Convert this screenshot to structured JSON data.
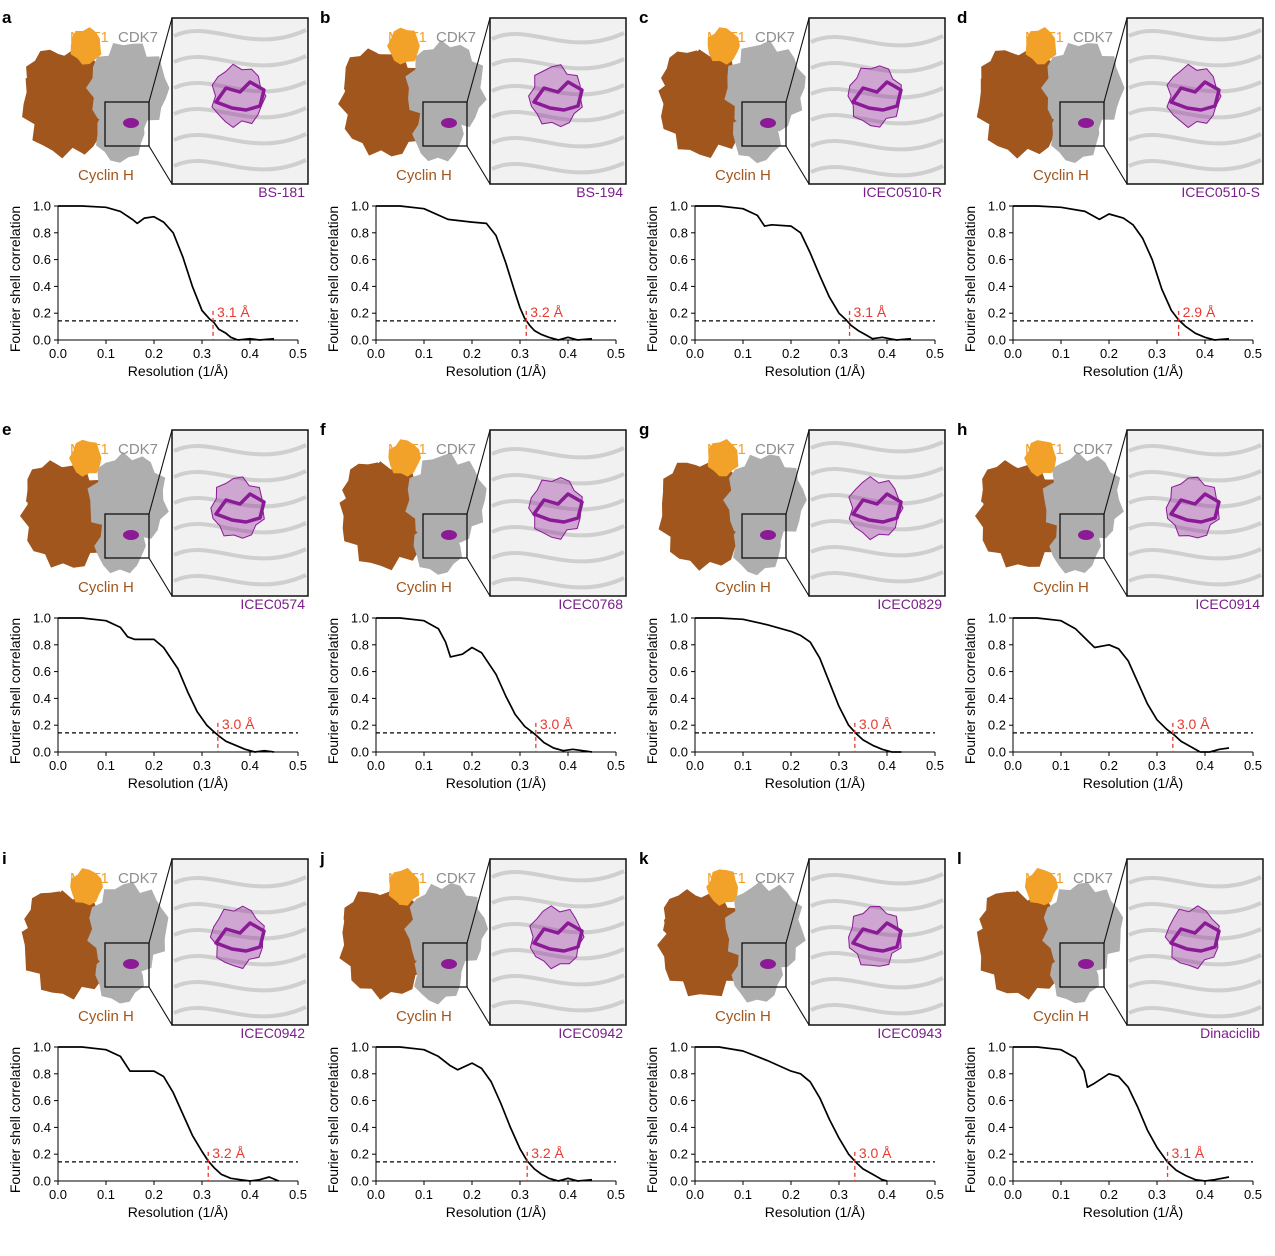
{
  "colors": {
    "mat1": "#f2a129",
    "cdk7": "#aeaeae",
    "cyclin_h": "#a0561d",
    "ligand": "#8b1a96",
    "threshold": "#000000",
    "resolution_marker": "#e8392f"
  },
  "common": {
    "mat1_label": "MAT1",
    "cdk7_label": "CDK7",
    "cyclin_label": "Cyclin H"
  },
  "panels": [
    {
      "id": "a",
      "ligand": "BS-181",
      "resolution_label": "3.1 Å"
    },
    {
      "id": "b",
      "ligand": "BS-194",
      "resolution_label": "3.2 Å"
    },
    {
      "id": "c",
      "ligand": "ICEC0510-R",
      "resolution_label": "3.1 Å"
    },
    {
      "id": "d",
      "ligand": "ICEC0510-S",
      "resolution_label": "2.9 Å"
    },
    {
      "id": "e",
      "ligand": "ICEC0574",
      "resolution_label": "3.0 Å"
    },
    {
      "id": "f",
      "ligand": "ICEC0768",
      "resolution_label": "3.0 Å"
    },
    {
      "id": "g",
      "ligand": "ICEC0829",
      "resolution_label": "3.0 Å"
    },
    {
      "id": "h",
      "ligand": "ICEC0914",
      "resolution_label": "3.0 Å"
    },
    {
      "id": "i",
      "ligand": "ICEC0942",
      "resolution_label": "3.2 Å"
    },
    {
      "id": "j",
      "ligand": "ICEC0942",
      "resolution_label": "3.2 Å"
    },
    {
      "id": "k",
      "ligand": "ICEC0943",
      "resolution_label": "3.0 Å"
    },
    {
      "id": "l",
      "ligand": "Dinaciclib",
      "resolution_label": "3.1 Å"
    }
  ],
  "chart_data": [
    {
      "panel": "a",
      "type": "line",
      "xlabel": "Resolution (1/Å)",
      "ylabel": "Fourier shell correlation",
      "xlim": [
        0,
        0.5
      ],
      "ylim": [
        0,
        1.0
      ],
      "xticks": [
        "0.0",
        "0.1",
        "0.2",
        "0.3",
        "0.4",
        "0.5"
      ],
      "yticks": [
        "0.0",
        "0.2",
        "0.4",
        "0.6",
        "0.8",
        "1.0"
      ],
      "threshold": 0.143,
      "resolution_x": 0.323,
      "resolution_label": "3.1 Å",
      "series": [
        {
          "x": [
            0,
            0.05,
            0.1,
            0.13,
            0.155,
            0.165,
            0.18,
            0.2,
            0.22,
            0.24,
            0.26,
            0.28,
            0.3,
            0.315,
            0.325,
            0.335,
            0.35,
            0.36,
            0.375,
            0.4,
            0.42,
            0.45
          ],
          "y": [
            1.0,
            1.0,
            0.99,
            0.96,
            0.9,
            0.87,
            0.91,
            0.92,
            0.88,
            0.8,
            0.62,
            0.4,
            0.22,
            0.16,
            0.13,
            0.08,
            0.05,
            0.02,
            0.0,
            0.01,
            0.0,
            0.01
          ]
        }
      ]
    },
    {
      "panel": "b",
      "type": "line",
      "xlabel": "Resolution (1/Å)",
      "ylabel": "Fourier shell correlation",
      "xlim": [
        0,
        0.5
      ],
      "ylim": [
        0,
        1.0
      ],
      "xticks": [
        "0.0",
        "0.1",
        "0.2",
        "0.3",
        "0.4",
        "0.5"
      ],
      "yticks": [
        "0.0",
        "0.2",
        "0.4",
        "0.6",
        "0.8",
        "1.0"
      ],
      "threshold": 0.143,
      "resolution_x": 0.313,
      "resolution_label": "3.2 Å",
      "series": [
        {
          "x": [
            0,
            0.05,
            0.1,
            0.15,
            0.2,
            0.23,
            0.25,
            0.27,
            0.29,
            0.3,
            0.31,
            0.32,
            0.33,
            0.345,
            0.36,
            0.38,
            0.4,
            0.42,
            0.45
          ],
          "y": [
            1.0,
            1.0,
            0.98,
            0.9,
            0.88,
            0.87,
            0.78,
            0.58,
            0.35,
            0.24,
            0.16,
            0.11,
            0.07,
            0.04,
            0.02,
            0.0,
            0.02,
            0.0,
            0.01
          ]
        }
      ]
    },
    {
      "panel": "c",
      "type": "line",
      "xlabel": "Resolution (1/Å)",
      "ylabel": "Fourier shell correlation",
      "xlim": [
        0,
        0.5
      ],
      "ylim": [
        0,
        1.0
      ],
      "xticks": [
        "0.0",
        "0.1",
        "0.2",
        "0.3",
        "0.4",
        "0.5"
      ],
      "yticks": [
        "0.0",
        "0.2",
        "0.4",
        "0.6",
        "0.8",
        "1.0"
      ],
      "threshold": 0.143,
      "resolution_x": 0.322,
      "resolution_label": "3.1 Å",
      "series": [
        {
          "x": [
            0,
            0.05,
            0.1,
            0.13,
            0.145,
            0.16,
            0.2,
            0.22,
            0.24,
            0.26,
            0.28,
            0.3,
            0.315,
            0.325,
            0.34,
            0.355,
            0.37,
            0.39,
            0.42,
            0.45
          ],
          "y": [
            1.0,
            1.0,
            0.98,
            0.93,
            0.85,
            0.86,
            0.85,
            0.8,
            0.65,
            0.48,
            0.32,
            0.2,
            0.15,
            0.11,
            0.07,
            0.04,
            0.01,
            0.02,
            0.0,
            0.01
          ]
        }
      ]
    },
    {
      "panel": "d",
      "type": "line",
      "xlabel": "Resolution (1/Å)",
      "ylabel": "Fourier shell correlation",
      "xlim": [
        0,
        0.5
      ],
      "ylim": [
        0,
        1.0
      ],
      "xticks": [
        "0.0",
        "0.1",
        "0.2",
        "0.3",
        "0.4",
        "0.5"
      ],
      "yticks": [
        "0.0",
        "0.2",
        "0.4",
        "0.6",
        "0.8",
        "1.0"
      ],
      "threshold": 0.143,
      "resolution_x": 0.345,
      "resolution_label": "2.9 Å",
      "series": [
        {
          "x": [
            0,
            0.05,
            0.1,
            0.15,
            0.18,
            0.2,
            0.23,
            0.25,
            0.27,
            0.29,
            0.31,
            0.33,
            0.345,
            0.36,
            0.38,
            0.4,
            0.42,
            0.45
          ],
          "y": [
            1.0,
            1.0,
            0.99,
            0.96,
            0.9,
            0.94,
            0.91,
            0.86,
            0.76,
            0.6,
            0.38,
            0.22,
            0.15,
            0.1,
            0.05,
            0.02,
            0.0,
            0.01
          ]
        }
      ]
    },
    {
      "panel": "e",
      "type": "line",
      "xlabel": "Resolution (1/Å)",
      "ylabel": "Fourier shell correlation",
      "xlim": [
        0,
        0.5
      ],
      "ylim": [
        0,
        1.0
      ],
      "xticks": [
        "0.0",
        "0.1",
        "0.2",
        "0.3",
        "0.4",
        "0.5"
      ],
      "yticks": [
        "0.0",
        "0.2",
        "0.4",
        "0.6",
        "0.8",
        "1.0"
      ],
      "threshold": 0.143,
      "resolution_x": 0.333,
      "resolution_label": "3.0 Å",
      "series": [
        {
          "x": [
            0,
            0.05,
            0.1,
            0.13,
            0.145,
            0.16,
            0.2,
            0.22,
            0.25,
            0.27,
            0.29,
            0.31,
            0.325,
            0.335,
            0.35,
            0.37,
            0.39,
            0.41,
            0.43,
            0.45
          ],
          "y": [
            1.0,
            1.0,
            0.98,
            0.93,
            0.86,
            0.84,
            0.84,
            0.78,
            0.62,
            0.45,
            0.3,
            0.2,
            0.15,
            0.12,
            0.08,
            0.05,
            0.02,
            0.0,
            0.01,
            0.0
          ]
        }
      ]
    },
    {
      "panel": "f",
      "type": "line",
      "xlabel": "Resolution (1/Å)",
      "ylabel": "Fourier shell correlation",
      "xlim": [
        0,
        0.5
      ],
      "ylim": [
        0,
        1.0
      ],
      "xticks": [
        "0.0",
        "0.1",
        "0.2",
        "0.3",
        "0.4",
        "0.5"
      ],
      "yticks": [
        "0.0",
        "0.2",
        "0.4",
        "0.6",
        "0.8",
        "1.0"
      ],
      "threshold": 0.143,
      "resolution_x": 0.333,
      "resolution_label": "3.0 Å",
      "series": [
        {
          "x": [
            0,
            0.05,
            0.1,
            0.13,
            0.145,
            0.155,
            0.18,
            0.2,
            0.22,
            0.25,
            0.27,
            0.29,
            0.31,
            0.325,
            0.335,
            0.35,
            0.37,
            0.39,
            0.41,
            0.45
          ],
          "y": [
            1.0,
            1.0,
            0.98,
            0.92,
            0.82,
            0.71,
            0.73,
            0.78,
            0.74,
            0.58,
            0.42,
            0.28,
            0.19,
            0.15,
            0.12,
            0.07,
            0.03,
            0.01,
            0.02,
            0.0
          ]
        }
      ]
    },
    {
      "panel": "g",
      "type": "line",
      "xlabel": "Resolution (1/Å)",
      "ylabel": "Fourier shell correlation",
      "xlim": [
        0,
        0.5
      ],
      "ylim": [
        0,
        1.0
      ],
      "xticks": [
        "0.0",
        "0.1",
        "0.2",
        "0.3",
        "0.4",
        "0.5"
      ],
      "yticks": [
        "0.0",
        "0.2",
        "0.4",
        "0.6",
        "0.8",
        "1.0"
      ],
      "threshold": 0.143,
      "resolution_x": 0.333,
      "resolution_label": "3.0 Å",
      "series": [
        {
          "x": [
            0,
            0.05,
            0.1,
            0.15,
            0.2,
            0.22,
            0.24,
            0.26,
            0.28,
            0.3,
            0.32,
            0.335,
            0.35,
            0.37,
            0.39,
            0.41,
            0.43
          ],
          "y": [
            1.0,
            1.0,
            0.99,
            0.95,
            0.9,
            0.87,
            0.82,
            0.7,
            0.52,
            0.34,
            0.2,
            0.14,
            0.09,
            0.05,
            0.02,
            0.0,
            0.0
          ]
        }
      ]
    },
    {
      "panel": "h",
      "type": "line",
      "xlabel": "Resolution (1/Å)",
      "ylabel": "Fourier shell correlation",
      "xlim": [
        0,
        0.5
      ],
      "ylim": [
        0,
        1.0
      ],
      "xticks": [
        "0.0",
        "0.1",
        "0.2",
        "0.3",
        "0.4",
        "0.5"
      ],
      "yticks": [
        "0.0",
        "0.2",
        "0.4",
        "0.6",
        "0.8",
        "1.0"
      ],
      "threshold": 0.143,
      "resolution_x": 0.333,
      "resolution_label": "3.0 Å",
      "series": [
        {
          "x": [
            0,
            0.05,
            0.1,
            0.13,
            0.15,
            0.17,
            0.2,
            0.22,
            0.24,
            0.26,
            0.28,
            0.3,
            0.32,
            0.335,
            0.35,
            0.37,
            0.39,
            0.41,
            0.43,
            0.45
          ],
          "y": [
            1.0,
            1.0,
            0.98,
            0.92,
            0.85,
            0.78,
            0.8,
            0.77,
            0.68,
            0.52,
            0.36,
            0.24,
            0.17,
            0.13,
            0.08,
            0.04,
            0.0,
            0.0,
            0.02,
            0.03
          ]
        }
      ]
    },
    {
      "panel": "i",
      "type": "line",
      "xlabel": "Resolution (1/Å)",
      "ylabel": "Fourier shell correlation",
      "xlim": [
        0,
        0.5
      ],
      "ylim": [
        0,
        1.0
      ],
      "xticks": [
        "0.0",
        "0.1",
        "0.2",
        "0.3",
        "0.4",
        "0.5"
      ],
      "yticks": [
        "0.0",
        "0.2",
        "0.4",
        "0.6",
        "0.8",
        "1.0"
      ],
      "threshold": 0.143,
      "resolution_x": 0.313,
      "resolution_label": "3.2 Å",
      "series": [
        {
          "x": [
            0,
            0.05,
            0.1,
            0.13,
            0.15,
            0.2,
            0.22,
            0.24,
            0.26,
            0.28,
            0.3,
            0.313,
            0.325,
            0.34,
            0.36,
            0.38,
            0.4,
            0.42,
            0.44,
            0.46
          ],
          "y": [
            1.0,
            1.0,
            0.98,
            0.93,
            0.82,
            0.82,
            0.78,
            0.66,
            0.5,
            0.34,
            0.22,
            0.15,
            0.1,
            0.05,
            0.02,
            0.01,
            0.0,
            0.01,
            0.03,
            0.0
          ]
        }
      ]
    },
    {
      "panel": "j",
      "type": "line",
      "xlabel": "Resolution (1/Å)",
      "ylabel": "Fourier shell correlation",
      "xlim": [
        0,
        0.5
      ],
      "ylim": [
        0,
        1.0
      ],
      "xticks": [
        "0.0",
        "0.1",
        "0.2",
        "0.3",
        "0.4",
        "0.5"
      ],
      "yticks": [
        "0.0",
        "0.2",
        "0.4",
        "0.6",
        "0.8",
        "1.0"
      ],
      "threshold": 0.143,
      "resolution_x": 0.315,
      "resolution_label": "3.2 Å",
      "series": [
        {
          "x": [
            0,
            0.05,
            0.1,
            0.13,
            0.155,
            0.17,
            0.2,
            0.22,
            0.24,
            0.26,
            0.28,
            0.3,
            0.315,
            0.33,
            0.345,
            0.36,
            0.38,
            0.4,
            0.42,
            0.45
          ],
          "y": [
            1.0,
            1.0,
            0.98,
            0.93,
            0.86,
            0.83,
            0.88,
            0.84,
            0.74,
            0.58,
            0.4,
            0.24,
            0.15,
            0.09,
            0.05,
            0.02,
            0.0,
            0.02,
            0.0,
            0.01
          ]
        }
      ]
    },
    {
      "panel": "k",
      "type": "line",
      "xlabel": "Resolution (1/Å)",
      "ylabel": "Fourier shell correlation",
      "xlim": [
        0,
        0.5
      ],
      "ylim": [
        0,
        1.0
      ],
      "xticks": [
        "0.0",
        "0.1",
        "0.2",
        "0.3",
        "0.4",
        "0.5"
      ],
      "yticks": [
        "0.0",
        "0.2",
        "0.4",
        "0.6",
        "0.8",
        "1.0"
      ],
      "threshold": 0.143,
      "resolution_x": 0.333,
      "resolution_label": "3.0 Å",
      "series": [
        {
          "x": [
            0,
            0.05,
            0.1,
            0.15,
            0.2,
            0.22,
            0.24,
            0.26,
            0.28,
            0.3,
            0.32,
            0.335,
            0.35,
            0.37,
            0.39,
            0.4
          ],
          "y": [
            1.0,
            1.0,
            0.97,
            0.9,
            0.82,
            0.8,
            0.74,
            0.62,
            0.46,
            0.32,
            0.2,
            0.14,
            0.09,
            0.05,
            0.01,
            0.0
          ]
        }
      ]
    },
    {
      "panel": "l",
      "type": "line",
      "xlabel": "Resolution (1/Å)",
      "ylabel": "Fourier shell correlation",
      "xlim": [
        0,
        0.5
      ],
      "ylim": [
        0,
        1.0
      ],
      "xticks": [
        "0.0",
        "0.1",
        "0.2",
        "0.3",
        "0.4",
        "0.5"
      ],
      "yticks": [
        "0.0",
        "0.2",
        "0.4",
        "0.6",
        "0.8",
        "1.0"
      ],
      "threshold": 0.143,
      "resolution_x": 0.322,
      "resolution_label": "3.1 Å",
      "series": [
        {
          "x": [
            0,
            0.05,
            0.1,
            0.13,
            0.148,
            0.155,
            0.17,
            0.2,
            0.22,
            0.24,
            0.26,
            0.28,
            0.3,
            0.322,
            0.34,
            0.36,
            0.38,
            0.4,
            0.42,
            0.45
          ],
          "y": [
            1.0,
            1.0,
            0.98,
            0.92,
            0.82,
            0.7,
            0.73,
            0.8,
            0.78,
            0.7,
            0.55,
            0.38,
            0.25,
            0.14,
            0.08,
            0.04,
            0.01,
            0.0,
            0.01,
            0.03
          ]
        }
      ]
    }
  ]
}
